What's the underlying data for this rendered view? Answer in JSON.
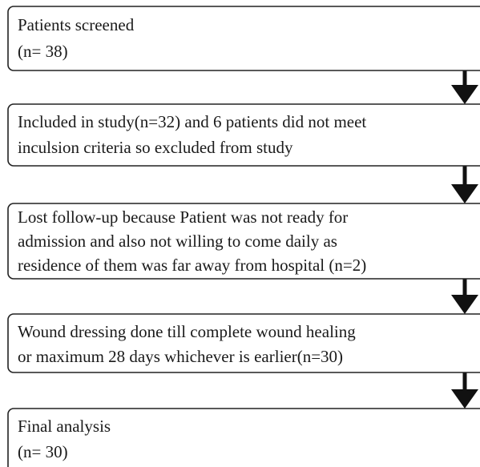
{
  "nodes": [
    {
      "lines": [
        "Patients screened",
        "(n= 38)"
      ]
    },
    {
      "lines": [
        "Included in study(n=32) and 6 patients did not meet",
        "inculsion criteria so excluded from study"
      ]
    },
    {
      "lines": [
        "Lost follow-up because Patient was not ready for",
        "admission and also not willing to come daily as",
        "residence of them was far away from hospital  (n=2)"
      ]
    },
    {
      "lines": [
        "Wound dressing done till complete wound healing",
        "or maximum 28 days whichever is earlier(n=30)"
      ]
    },
    {
      "lines": [
        "Final analysis",
        "(n= 30)"
      ]
    }
  ]
}
